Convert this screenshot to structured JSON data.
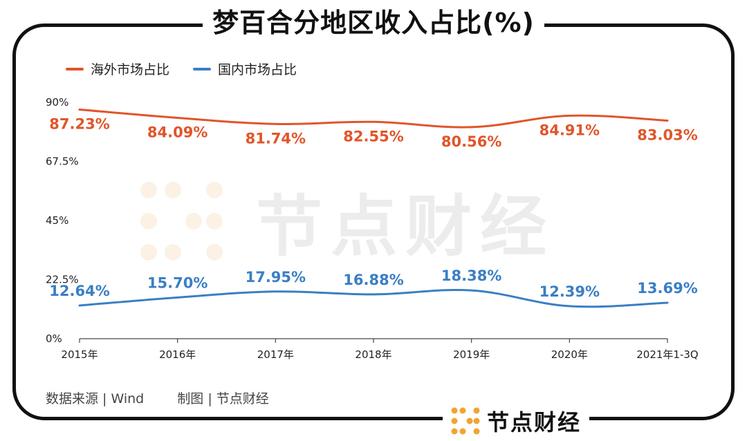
{
  "title": "梦百合分地区收入占比(%)",
  "legend": [
    {
      "name": "海外市场占比",
      "color": "#e0552a"
    },
    {
      "name": "国内市场占比",
      "color": "#3a7fc4"
    }
  ],
  "footer": {
    "source": "数据来源 | Wind",
    "credit": "制图 | 节点财经"
  },
  "brand": {
    "name": "节点财经",
    "logo_icon": "dot-grid-logo-icon",
    "logo_color": "#f2a431"
  },
  "watermark": {
    "text": "节点财经"
  },
  "chart_data": {
    "type": "line",
    "title": "梦百合分地区收入占比(%)",
    "categories": [
      "2015年",
      "2016年",
      "2017年",
      "2018年",
      "2019年",
      "2020年",
      "2021年1-3Q"
    ],
    "series": [
      {
        "name": "海外市场占比",
        "color": "#e0552a",
        "values": [
          87.23,
          84.09,
          81.74,
          82.55,
          80.56,
          84.91,
          83.03
        ],
        "labels": [
          "87.23%",
          "84.09%",
          "81.74%",
          "82.55%",
          "80.56%",
          "84.91%",
          "83.03%"
        ]
      },
      {
        "name": "国内市场占比",
        "color": "#3a7fc4",
        "values": [
          12.64,
          15.7,
          17.95,
          16.88,
          18.38,
          12.39,
          13.69
        ],
        "labels": [
          "12.64%",
          "15.70%",
          "17.95%",
          "16.88%",
          "18.38%",
          "12.39%",
          "13.69%"
        ]
      }
    ],
    "yticks": [
      0,
      22.5,
      45,
      67.5,
      90
    ],
    "ytick_labels": [
      "0%",
      "22.5%",
      "45%",
      "67.5%",
      "90%"
    ],
    "ylim": [
      0,
      90
    ],
    "xlabel": "",
    "ylabel": "",
    "grid": false,
    "legend_position": "top-left"
  }
}
